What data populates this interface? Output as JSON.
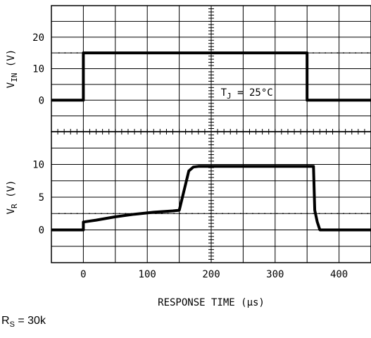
{
  "chart_data": {
    "type": "line",
    "xlabel": "RESPONSE TIME (μs)",
    "xlim": [
      -50,
      450
    ],
    "xticks": [
      0,
      100,
      200,
      300,
      400
    ],
    "panels": [
      {
        "id": "vin",
        "ylabel": {
          "base": "V",
          "sub": "IN",
          "unit": "(V)"
        },
        "ylim": [
          -10,
          30
        ],
        "yticks": [
          0,
          10,
          20
        ],
        "reference_level": 15,
        "annotation": {
          "base": "T",
          "sub": "J",
          "rest": " = 25°C"
        },
        "series": [
          {
            "x": [
              -50,
              0,
              0,
              350,
              350,
              450
            ],
            "y": [
              0,
              0,
              15,
              15,
              0,
              0
            ]
          }
        ]
      },
      {
        "id": "vr",
        "ylabel": {
          "base": "V",
          "sub": "R",
          "unit": "(V)"
        },
        "ylim": [
          -5,
          15
        ],
        "yticks": [
          0,
          5,
          10
        ],
        "reference_level": 2.5,
        "series": [
          {
            "x": [
              -50,
              0,
              0,
              20,
              50,
              80,
              110,
              140,
              150,
              165,
              172,
              180,
              360,
              362,
              366,
              370,
              450
            ],
            "y": [
              0,
              0,
              1.2,
              1.5,
              2.0,
              2.4,
              2.7,
              2.9,
              3.0,
              9.0,
              9.6,
              9.7,
              9.7,
              3.0,
              1.2,
              0,
              0
            ]
          }
        ]
      }
    ]
  },
  "footnote": {
    "base": "R",
    "sub": "S",
    "rest": " = 30k"
  }
}
